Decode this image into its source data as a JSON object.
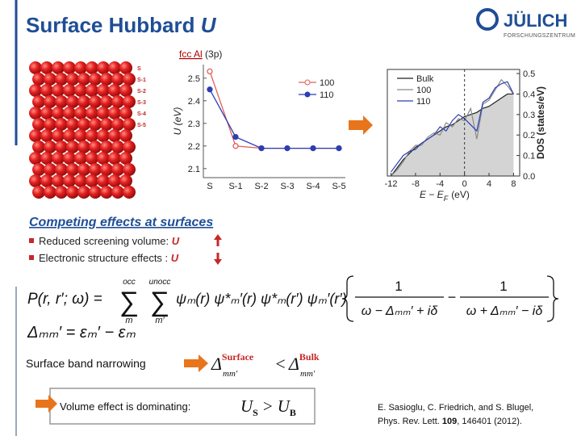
{
  "header": {
    "title": "Surface Hubbard",
    "title_symbol": "U",
    "logo": "JÜLICH",
    "logo_sub": "FORSCHUNGSZENTRUM"
  },
  "structure": {
    "title_link": "fcc Al",
    "title_rest": "(3p)",
    "layers": [
      "S",
      "S-1",
      "S-2",
      "S-3",
      "S-4",
      "S-5"
    ]
  },
  "chart_data": [
    {
      "type": "line",
      "y_label": "U (eV)",
      "categories": [
        "S",
        "S-1",
        "S-2",
        "S-3",
        "S-4",
        "S-5"
      ],
      "series": [
        {
          "name": "100",
          "color": "#e0605a",
          "marker": "open-circle",
          "values": [
            2.53,
            2.2,
            2.19,
            2.19,
            2.19,
            2.19
          ]
        },
        {
          "name": "110",
          "color": "#2b3fb5",
          "marker": "filled-circle",
          "values": [
            2.45,
            2.24,
            2.19,
            2.19,
            2.19,
            2.19
          ]
        }
      ],
      "ylim": [
        2.06,
        2.56
      ],
      "yticks": [
        2.1,
        2.2,
        2.3,
        2.4,
        2.5
      ],
      "legend": "upper-right"
    },
    {
      "type": "area-line",
      "x_label": "E − E",
      "x_label_sub": "F",
      "x_label_unit": "(eV)",
      "y_label": "DOS (states/eV)",
      "x": [
        -12,
        -11,
        -10,
        -9,
        -8,
        -7,
        -6,
        -5,
        -4,
        -3,
        -2,
        -1,
        0,
        1,
        2,
        3,
        4,
        5,
        6,
        7,
        8
      ],
      "series": [
        {
          "name": "Bulk",
          "color": "#222222",
          "fill": "#d4d4d4",
          "values": [
            0,
            0.04,
            0.08,
            0.11,
            0.14,
            0.16,
            0.18,
            0.2,
            0.22,
            0.24,
            0.25,
            0.27,
            0.29,
            0.3,
            0.31,
            0.33,
            0.34,
            0.36,
            0.38,
            0.4,
            0.4
          ]
        },
        {
          "name": "100",
          "color": "#8a8a8a",
          "values": [
            0,
            0.03,
            0.07,
            0.12,
            0.15,
            0.15,
            0.19,
            0.21,
            0.2,
            0.26,
            0.24,
            0.28,
            0.27,
            0.33,
            0.18,
            0.35,
            0.37,
            0.42,
            0.47,
            0.44,
            0.4
          ]
        },
        {
          "name": "110",
          "color": "#2b3fb5",
          "values": [
            0.02,
            0.06,
            0.1,
            0.12,
            0.13,
            0.16,
            0.18,
            0.2,
            0.24,
            0.22,
            0.27,
            0.3,
            0.28,
            0.25,
            0.22,
            0.36,
            0.38,
            0.43,
            0.45,
            0.46,
            0.4
          ]
        }
      ],
      "xlim": [
        -12.6,
        9
      ],
      "xticks": [
        -12,
        -8,
        -4,
        0,
        4,
        8
      ],
      "ylim": [
        0,
        0.52
      ],
      "yticks": [
        {
          "value": 0,
          "label": "0.0"
        },
        0.1,
        0.2,
        0.3,
        0.4,
        0.5
      ],
      "legend": "upper-left"
    }
  ],
  "section": {
    "heading": "Competing effects at surfaces",
    "bullets": [
      {
        "text": "Reduced screening volume:",
        "symbol": "U"
      },
      {
        "text": "Electronic structure effects :",
        "symbol": "U"
      }
    ]
  },
  "formula": {
    "lhs": "P(r, r′; ω) =",
    "sum1": {
      "top": "occ",
      "sign": "∑",
      "bottom": "m"
    },
    "sum2": {
      "top": "unocc",
      "sign": "∑",
      "bottom": "m′"
    },
    "product": "ψₘ(r) ψ*ₘ′(r) ψ*ₘ(r′) ψₘ′(r′)",
    "frac1": {
      "num": "1",
      "den": "ω − Δₘₘ′ + iδ"
    },
    "minus": "−",
    "frac2": {
      "num": "1",
      "den": "ω + Δₘₘ′ − iδ"
    },
    "delta": "Δₘₘ′ = εₘ′ − εₘ"
  },
  "narrowing": {
    "text": "Surface band narrowing",
    "lhs_symbol": "Δ",
    "lhs_sup": "Surface",
    "lhs_sub": "mm′",
    "op": "<",
    "rhs_symbol": "Δ",
    "rhs_sup": "Bulk",
    "rhs_sub": "mm′"
  },
  "conclusion": {
    "text": "Volume effect is dominating:",
    "lhs": "U",
    "lhs_sub": "S",
    "op": ">",
    "rhs": "U",
    "rhs_sub": "B"
  },
  "reference": {
    "authors": "E. Sasioglu, C. Friedrich, and S. Blugel,",
    "journal": "Phys. Rev. Lett.",
    "volume": "109",
    "rest": ", 146401 (2012)."
  }
}
